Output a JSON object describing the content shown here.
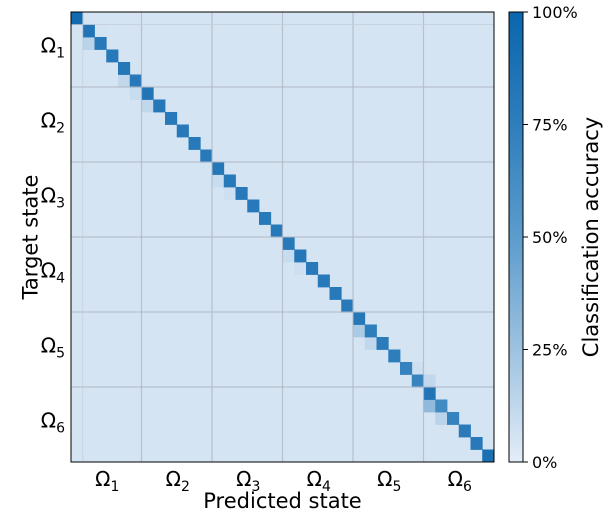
{
  "chart_data": {
    "type": "heatmap",
    "title": "",
    "xlabel": "Predicted state",
    "ylabel": "Target state",
    "colorbar_label": "Classification accuracy",
    "n_states": 36,
    "group_size": 6,
    "x_group_labels": [
      "Ω1",
      "Ω2",
      "Ω3",
      "Ω4",
      "Ω5",
      "Ω6"
    ],
    "y_group_labels": [
      "Ω1",
      "Ω2",
      "Ω3",
      "Ω4",
      "Ω5",
      "Ω6"
    ],
    "colorbar_ticks": [
      "0%",
      "25%",
      "50%",
      "75%",
      "100%"
    ],
    "colorbar_tick_values": [
      0,
      25,
      50,
      75,
      100
    ],
    "value_range": [
      0,
      100
    ],
    "diagonal_accuracy": [
      95,
      85,
      80,
      80,
      82,
      80,
      85,
      82,
      80,
      80,
      80,
      80,
      82,
      80,
      80,
      80,
      80,
      80,
      80,
      82,
      80,
      80,
      80,
      80,
      82,
      75,
      78,
      75,
      72,
      70,
      85,
      65,
      72,
      78,
      80,
      90
    ],
    "off_diagonal_accuracy": [
      {
        "row": 2,
        "col": 1,
        "value": 15
      },
      {
        "row": 5,
        "col": 4,
        "value": 12
      },
      {
        "row": 6,
        "col": 5,
        "value": 10
      },
      {
        "row": 7,
        "col": 6,
        "value": 12
      },
      {
        "row": 13,
        "col": 12,
        "value": 10
      },
      {
        "row": 14,
        "col": 13,
        "value": 8
      },
      {
        "row": 19,
        "col": 18,
        "value": 10
      },
      {
        "row": 20,
        "col": 19,
        "value": 8
      },
      {
        "row": 25,
        "col": 24,
        "value": 20
      },
      {
        "row": 26,
        "col": 25,
        "value": 12
      },
      {
        "row": 29,
        "col": 30,
        "value": 12
      },
      {
        "row": 31,
        "col": 30,
        "value": 30
      },
      {
        "row": 32,
        "col": 31,
        "value": 15
      },
      {
        "row": 1,
        "col": 2,
        "value": 6
      },
      {
        "row": 28,
        "col": 29,
        "value": 8
      }
    ],
    "background_value": 5,
    "grid": true,
    "colormap": [
      "#e3edf8",
      "#9dc2e0",
      "#5c9ccc",
      "#2f7ebc",
      "#0b66ad"
    ]
  }
}
